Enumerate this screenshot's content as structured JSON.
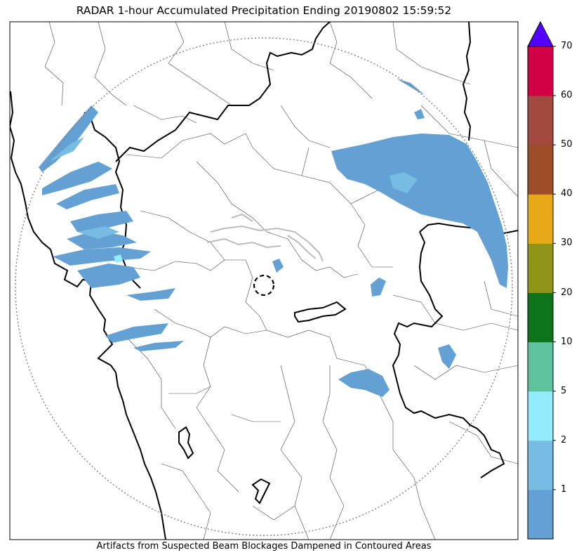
{
  "title": "RADAR 1-hour Accumulated Precipitation Ending 20190802 15:59:52",
  "footer": "Artifacts from Suspected Beam Blockages Dampened in Contoured Areas",
  "colorbar": {
    "ticks": [
      "1",
      "2",
      "5",
      "10",
      "20",
      "30",
      "40",
      "50",
      "60",
      "70"
    ],
    "colors": [
      "#63a0d4",
      "#77bce2",
      "#92ecfd",
      "#5ec39d",
      "#0e7419",
      "#8d9417",
      "#e8a919",
      "#9a4d27",
      "#a4493f",
      "#d20045"
    ],
    "extend_color": "#5400ff"
  },
  "colors": {
    "rain_light": "#63a0d4",
    "rain_mid": "#77bce2",
    "rain_cyan": "#92ecfd",
    "boundary_thick": "#000000",
    "boundary_thin": "#444444",
    "range_ring": "#808080",
    "blockage_contour": "#bbbbbb"
  }
}
